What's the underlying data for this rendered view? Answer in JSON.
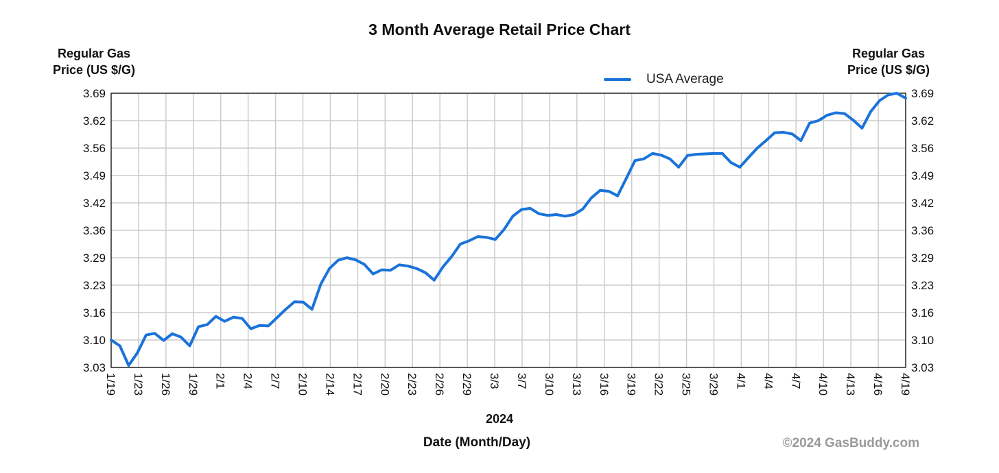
{
  "chart_data": {
    "type": "line",
    "title": "3 Month Average Retail Price Chart",
    "ylabel": "Regular Gas Price (US $/G)",
    "ylabel_lines": [
      "Regular Gas",
      "Price (US $/G)"
    ],
    "xlabel": "Date (Month/Day)",
    "year_label": "2024",
    "copyright": "©2024 GasBuddy.com",
    "legend": {
      "position": "top-right",
      "label": "USA Average"
    },
    "ylim": [
      3.03,
      3.69
    ],
    "y_ticks": [
      "3.69",
      "3.62",
      "3.56",
      "3.49",
      "3.42",
      "3.36",
      "3.29",
      "3.23",
      "3.16",
      "3.10",
      "3.03"
    ],
    "x_ticks": [
      "1/19",
      "1/23",
      "1/26",
      "1/29",
      "2/1",
      "2/4",
      "2/7",
      "2/10",
      "2/14",
      "2/17",
      "2/20",
      "2/23",
      "2/26",
      "2/29",
      "3/3",
      "3/7",
      "3/10",
      "3/13",
      "3/16",
      "3/19",
      "3/22",
      "3/25",
      "3/29",
      "4/1",
      "4/4",
      "4/7",
      "4/10",
      "4/13",
      "4/16",
      "4/19"
    ],
    "x_range_days": [
      0,
      91
    ],
    "grid": true,
    "colors": {
      "line": "#1a73d9",
      "grid": "#cccccc"
    },
    "series": [
      {
        "name": "USA Average",
        "x": [
          0,
          1,
          2,
          3,
          4,
          5,
          6,
          7,
          8,
          9,
          10,
          11,
          12,
          13,
          14,
          15,
          16,
          17,
          18,
          19,
          20,
          21,
          22,
          23,
          24,
          25,
          26,
          27,
          28,
          29,
          30,
          31,
          32,
          33,
          34,
          35,
          36,
          37,
          38,
          39,
          40,
          41,
          42,
          43,
          44,
          45,
          46,
          47,
          48,
          49,
          50,
          51,
          52,
          53,
          54,
          55,
          56,
          57,
          58,
          59,
          60,
          61,
          62,
          63,
          64,
          65,
          66,
          67,
          68,
          69,
          70,
          71,
          72,
          73,
          74,
          75,
          76,
          77,
          78,
          79,
          80,
          81,
          82,
          83,
          84,
          85,
          86,
          87,
          88,
          89,
          90,
          91
        ],
        "values": [
          3.096,
          3.082,
          3.035,
          3.065,
          3.108,
          3.112,
          3.095,
          3.111,
          3.103,
          3.082,
          3.128,
          3.133,
          3.153,
          3.141,
          3.151,
          3.148,
          3.123,
          3.131,
          3.13,
          3.15,
          3.17,
          3.188,
          3.187,
          3.17,
          3.23,
          3.268,
          3.288,
          3.294,
          3.289,
          3.278,
          3.255,
          3.265,
          3.264,
          3.277,
          3.274,
          3.268,
          3.258,
          3.24,
          3.272,
          3.297,
          3.327,
          3.335,
          3.345,
          3.343,
          3.338,
          3.362,
          3.394,
          3.41,
          3.413,
          3.4,
          3.396,
          3.398,
          3.394,
          3.398,
          3.411,
          3.438,
          3.456,
          3.454,
          3.443,
          3.485,
          3.528,
          3.532,
          3.545,
          3.541,
          3.532,
          3.512,
          3.54,
          3.543,
          3.544,
          3.545,
          3.545,
          3.523,
          3.512,
          3.535,
          3.558,
          3.576,
          3.595,
          3.596,
          3.592,
          3.576,
          3.618,
          3.624,
          3.637,
          3.643,
          3.641,
          3.625,
          3.606,
          3.646,
          3.672,
          3.686,
          3.69,
          3.678
        ]
      }
    ]
  }
}
